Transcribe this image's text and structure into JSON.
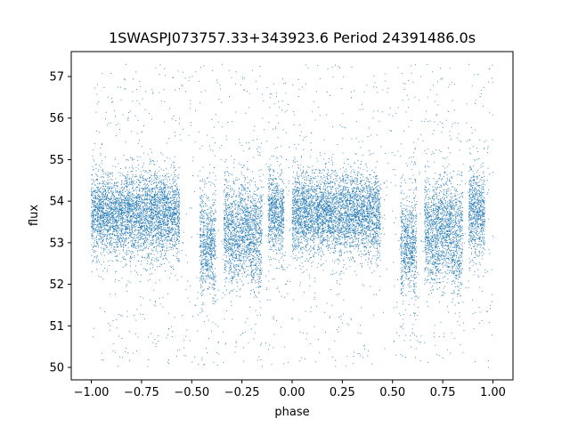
{
  "chart_data": {
    "type": "scatter",
    "title": "1SWASPJ073757.33+343923.6 Period 24391486.0s",
    "xlabel": "phase",
    "ylabel": "flux",
    "xlim": [
      -1.1,
      1.1
    ],
    "ylim": [
      49.7,
      57.6
    ],
    "xticks": [
      -1.0,
      -0.75,
      -0.5,
      -0.25,
      0.0,
      0.25,
      0.5,
      0.75,
      1.0
    ],
    "xtick_labels": [
      "−1.00",
      "−0.75",
      "−0.50",
      "−0.25",
      "0.00",
      "0.25",
      "0.50",
      "0.75",
      "1.00"
    ],
    "yticks": [
      50,
      51,
      52,
      53,
      54,
      55,
      56,
      57
    ],
    "ytick_labels": [
      "50",
      "51",
      "52",
      "53",
      "54",
      "55",
      "56",
      "57"
    ],
    "grid": false,
    "marker_color": "#1f77b4",
    "series": [
      {
        "x_range": [
          -1.0,
          1.0
        ],
        "clusters": [
          {
            "x": [
              -1.0,
              -0.56
            ],
            "center": 53.7,
            "spread": 0.5
          },
          {
            "x": [
              -0.46,
              -0.38
            ],
            "center": 53.0,
            "spread": 0.8
          },
          {
            "x": [
              -0.34,
              -0.15
            ],
            "center": 53.4,
            "spread": 0.6
          },
          {
            "x": [
              -0.12,
              -0.04
            ],
            "center": 53.7,
            "spread": 0.5
          },
          {
            "x": [
              0.0,
              0.44
            ],
            "center": 53.7,
            "spread": 0.5
          },
          {
            "x": [
              0.54,
              0.62
            ],
            "center": 53.0,
            "spread": 0.8
          },
          {
            "x": [
              0.66,
              0.85
            ],
            "center": 53.4,
            "spread": 0.6
          },
          {
            "x": [
              0.88,
              0.96
            ],
            "center": 53.7,
            "spread": 0.5
          }
        ],
        "dips": [
          {
            "x": -0.42,
            "min": 52.3
          },
          {
            "x": -0.29,
            "min": 52.1
          },
          {
            "x": -0.18,
            "min": 51.9
          },
          {
            "x": 0.58,
            "min": 52.3
          },
          {
            "x": 0.71,
            "min": 52.1
          },
          {
            "x": 0.82,
            "min": 51.9
          }
        ],
        "outlier_y_range": [
          50.0,
          57.3
        ]
      }
    ]
  }
}
